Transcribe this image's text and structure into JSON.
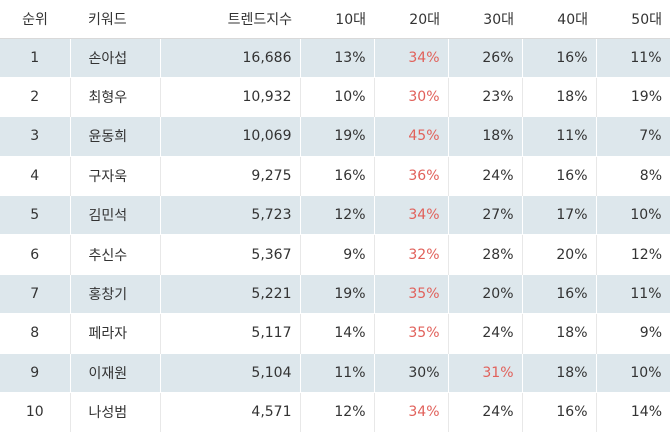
{
  "table": {
    "headers": {
      "rank": "순위",
      "keyword": "키워드",
      "index": "트렌드지수",
      "age10": "10대",
      "age20": "20대",
      "age30": "30대",
      "age40": "40대",
      "age50": "50대"
    },
    "rows": [
      {
        "rank": "1",
        "keyword": "손아섭",
        "index": "16,686",
        "age10": "13%",
        "age20": "34%",
        "age30": "26%",
        "age40": "16%",
        "age50": "11%"
      },
      {
        "rank": "2",
        "keyword": "최형우",
        "index": "10,932",
        "age10": "10%",
        "age20": "30%",
        "age30": "23%",
        "age40": "18%",
        "age50": "19%"
      },
      {
        "rank": "3",
        "keyword": "윤동희",
        "index": "10,069",
        "age10": "19%",
        "age20": "45%",
        "age30": "18%",
        "age40": "11%",
        "age50": "7%"
      },
      {
        "rank": "4",
        "keyword": "구자욱",
        "index": "9,275",
        "age10": "16%",
        "age20": "36%",
        "age30": "24%",
        "age40": "16%",
        "age50": "8%"
      },
      {
        "rank": "5",
        "keyword": "김민석",
        "index": "5,723",
        "age10": "12%",
        "age20": "34%",
        "age30": "27%",
        "age40": "17%",
        "age50": "10%"
      },
      {
        "rank": "6",
        "keyword": "추신수",
        "index": "5,367",
        "age10": "9%",
        "age20": "32%",
        "age30": "28%",
        "age40": "20%",
        "age50": "12%"
      },
      {
        "rank": "7",
        "keyword": "홍창기",
        "index": "5,221",
        "age10": "19%",
        "age20": "35%",
        "age30": "20%",
        "age40": "16%",
        "age50": "11%"
      },
      {
        "rank": "8",
        "keyword": "페라자",
        "index": "5,117",
        "age10": "14%",
        "age20": "35%",
        "age30": "24%",
        "age40": "18%",
        "age50": "9%"
      },
      {
        "rank": "9",
        "keyword": "이재원",
        "index": "5,104",
        "age10": "11%",
        "age20": "30%",
        "age30": "31%",
        "age40": "18%",
        "age50": "10%"
      },
      {
        "rank": "10",
        "keyword": "나성범",
        "index": "4,571",
        "age10": "12%",
        "age20": "34%",
        "age30": "24%",
        "age40": "16%",
        "age50": "14%"
      }
    ]
  },
  "colors": {
    "highlight": "#e1615b",
    "row_shade": "#dde7ec",
    "text": "#333333"
  }
}
